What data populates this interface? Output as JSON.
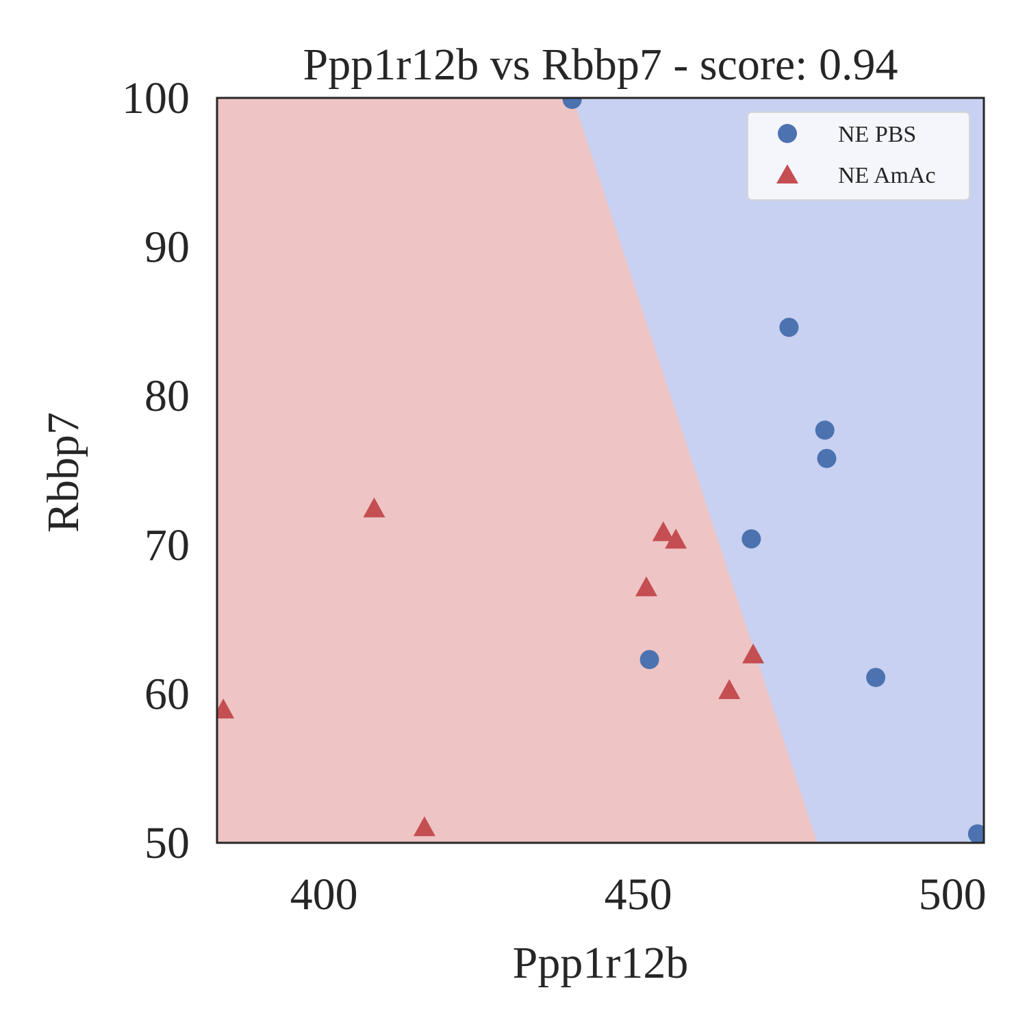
{
  "chart_data": {
    "type": "scatter",
    "title": "Ppp1r12b vs Rbbp7 - score: 0.94",
    "xlabel": "Ppp1r12b",
    "ylabel": "Rbbp7",
    "xlim": [
      383,
      505
    ],
    "ylim": [
      50,
      100
    ],
    "xticks": [
      "400",
      "450",
      "500"
    ],
    "yticks": [
      "50",
      "60",
      "70",
      "80",
      "90",
      "100"
    ],
    "xtick_values": [
      400,
      450,
      500
    ],
    "ytick_values": [
      50,
      60,
      70,
      80,
      90,
      100
    ],
    "grid": false,
    "legend_position": "top-right",
    "decision_boundary": {
      "points": [
        [
          439.6,
          100
        ],
        [
          478.5,
          50
        ]
      ],
      "left_region_color": "#eec4c4",
      "right_region_color": "#c8d1f1"
    },
    "series": [
      {
        "name": "NE PBS",
        "marker": "circle",
        "color": "#4c72b0",
        "points": [
          [
            439.5,
            99.9
          ],
          [
            474,
            84.6
          ],
          [
            479.7,
            77.7
          ],
          [
            480,
            75.8
          ],
          [
            468,
            70.4
          ],
          [
            451.8,
            62.3
          ],
          [
            487.8,
            61.1
          ],
          [
            504,
            50.6
          ]
        ]
      },
      {
        "name": "NE AmAc",
        "marker": "triangle",
        "color": "#c44e52",
        "points": [
          [
            408,
            72.4
          ],
          [
            454,
            70.8
          ],
          [
            456,
            70.3
          ],
          [
            451.3,
            67.1
          ],
          [
            468.3,
            62.6
          ],
          [
            464.5,
            60.2
          ],
          [
            384,
            58.9
          ],
          [
            416,
            51
          ]
        ]
      }
    ]
  }
}
